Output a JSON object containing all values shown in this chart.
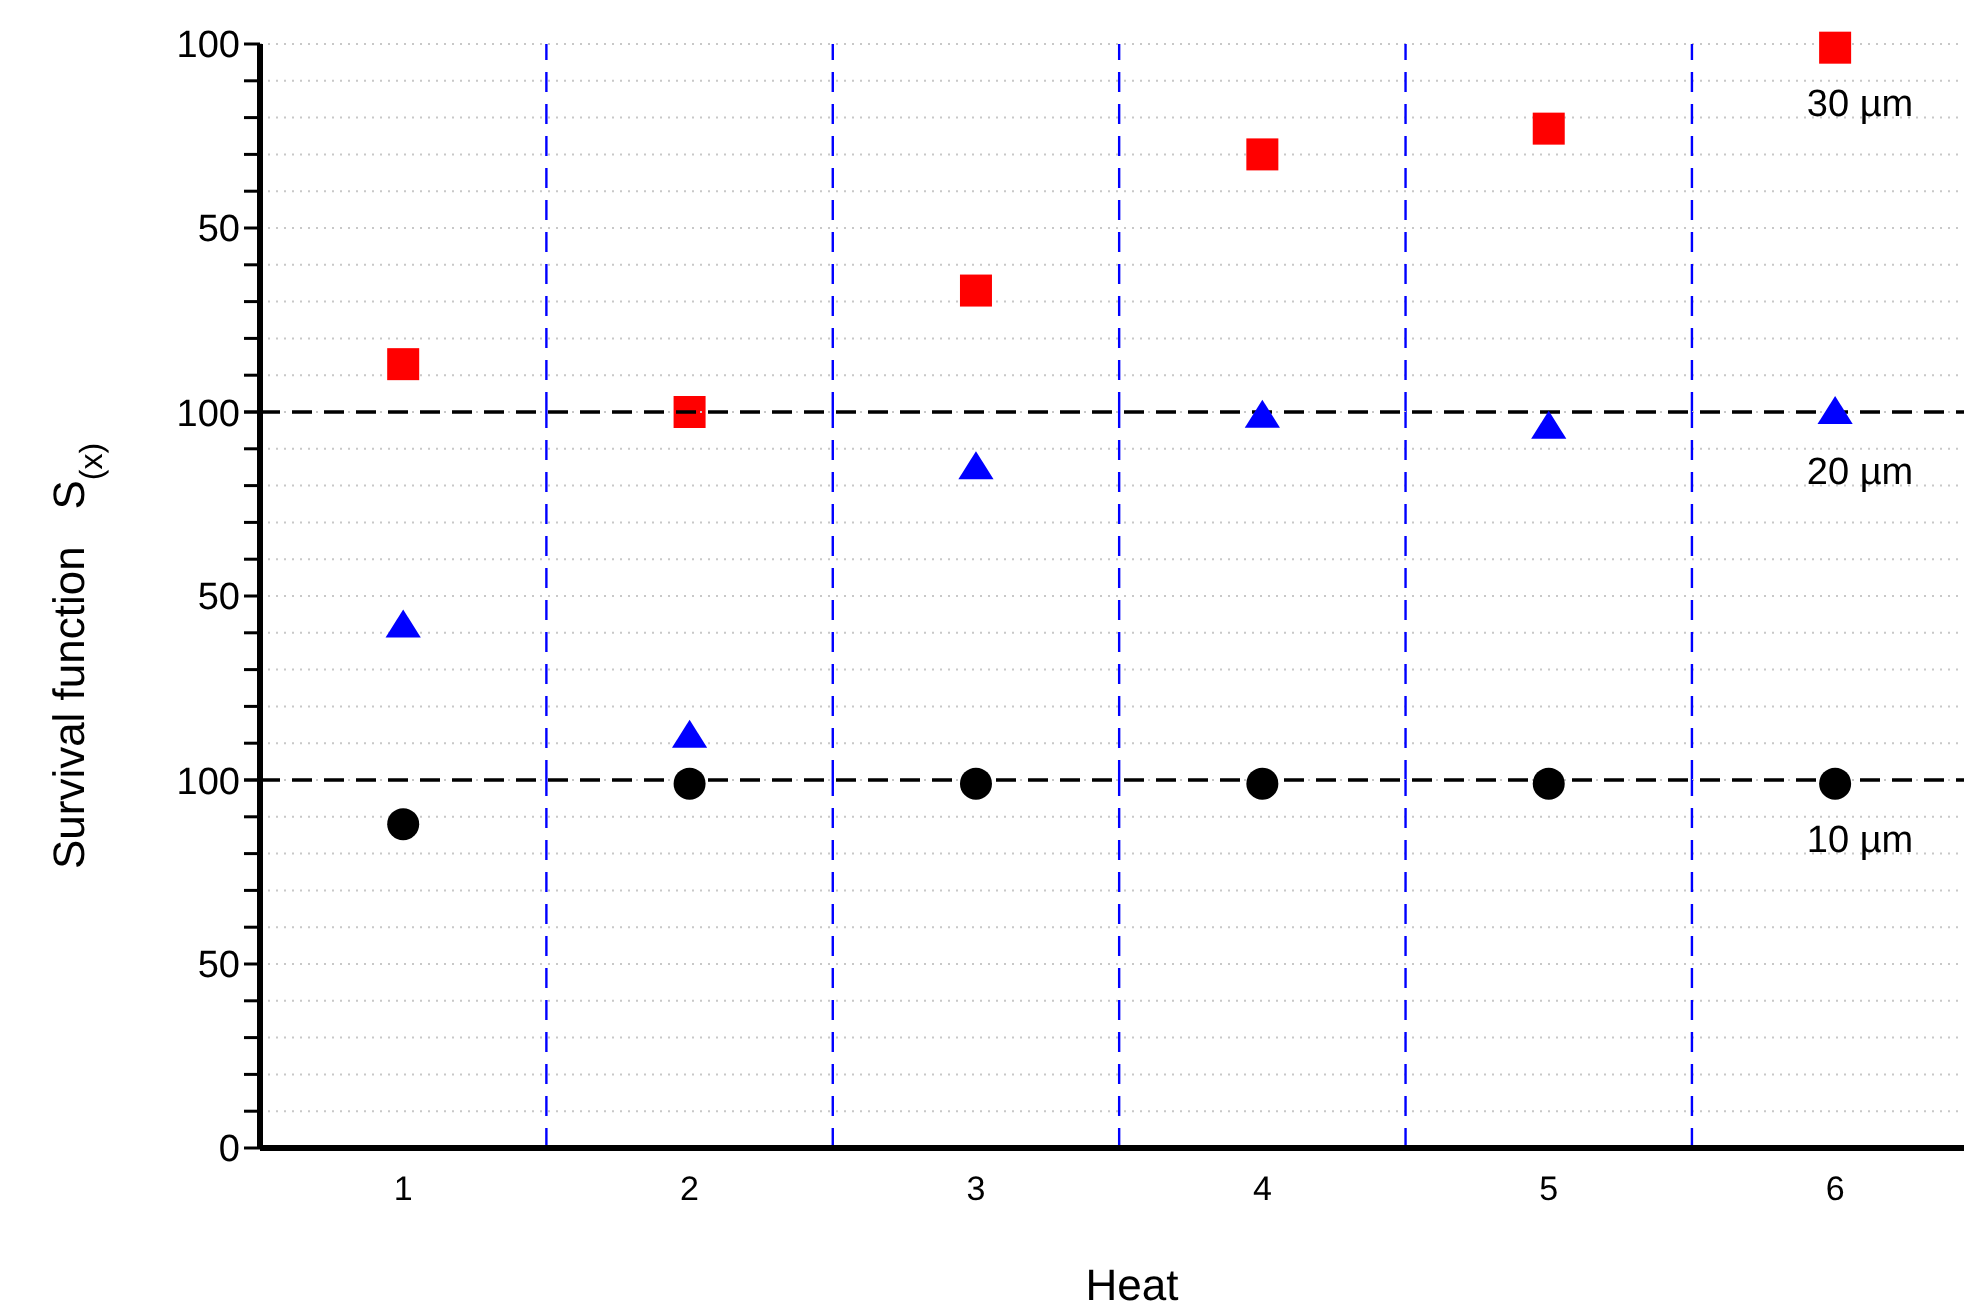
{
  "chart_data": [
    {
      "type": "scatter",
      "x": [
        1,
        2,
        3,
        4,
        5,
        6
      ],
      "xlim": [
        0.5,
        6.45
      ],
      "xticks": [
        1,
        2,
        3,
        4,
        5,
        6
      ],
      "ylim": [
        0,
        100
      ],
      "yticks": [
        {
          "value": 0,
          "label": null
        },
        {
          "value": 10,
          "label": null
        },
        {
          "value": 20,
          "label": null
        },
        {
          "value": 30,
          "label": null
        },
        {
          "value": 40,
          "label": null
        },
        50,
        {
          "value": 60,
          "label": null
        },
        {
          "value": 70,
          "label": null
        },
        {
          "value": 80,
          "label": null
        },
        {
          "value": 90,
          "label": null
        },
        100
      ],
      "tick_labels": "y",
      "grid": "y",
      "series": [
        {
          "name": "30 µm",
          "color": "#ff0000",
          "marker": "square",
          "values": [
            13,
            0,
            33,
            70,
            77,
            99
          ]
        }
      ],
      "ref_lines": [
        {
          "axis": "x",
          "value": 1.5,
          "color": "#0000ff",
          "line_style": "dashed"
        },
        {
          "axis": "x",
          "value": 2.5,
          "color": "#0000ff",
          "line_style": "dashed"
        },
        {
          "axis": "x",
          "value": 3.5,
          "color": "#0000ff",
          "line_style": "dashed"
        },
        {
          "axis": "x",
          "value": 4.5,
          "color": "#0000ff",
          "line_style": "dashed"
        },
        {
          "axis": "x",
          "value": 5.5,
          "color": "#0000ff",
          "line_style": "dashed"
        }
      ]
    },
    {
      "type": "scatter",
      "x": [
        1,
        2,
        3,
        4,
        5,
        6
      ],
      "xlim": [
        0.5,
        6.45
      ],
      "xticks": [
        1,
        2,
        3,
        4,
        5,
        6
      ],
      "ylim": [
        0,
        100
      ],
      "yticks": [
        {
          "value": 0,
          "label": null
        },
        {
          "value": 10,
          "label": null
        },
        {
          "value": 20,
          "label": null
        },
        {
          "value": 30,
          "label": null
        },
        {
          "value": 40,
          "label": null
        },
        50,
        {
          "value": 60,
          "label": null
        },
        {
          "value": 70,
          "label": null
        },
        {
          "value": 80,
          "label": null
        },
        {
          "value": 90,
          "label": null
        },
        100
      ],
      "tick_labels": "y",
      "grid": "y",
      "ylabel": "Survival function   S$_{(x)}$",
      "series": [
        {
          "name": "20 µm",
          "color": "#0000ff",
          "marker": "triangle",
          "values": [
            42,
            12,
            85,
            99,
            96,
            100
          ]
        }
      ],
      "ref_lines": [
        {
          "axis": "y",
          "value": 100,
          "color": "#000000",
          "line_style": "dashed"
        },
        {
          "axis": "x",
          "value": 1.5,
          "color": "#0000ff",
          "line_style": "dashed"
        },
        {
          "axis": "x",
          "value": 2.5,
          "color": "#0000ff",
          "line_style": "dashed"
        },
        {
          "axis": "x",
          "value": 3.5,
          "color": "#0000ff",
          "line_style": "dashed"
        },
        {
          "axis": "x",
          "value": 4.5,
          "color": "#0000ff",
          "line_style": "dashed"
        },
        {
          "axis": "x",
          "value": 5.5,
          "color": "#0000ff",
          "line_style": "dashed"
        }
      ]
    },
    {
      "type": "scatter",
      "x": [
        1,
        2,
        3,
        4,
        5,
        6
      ],
      "xlim": [
        0.5,
        6.45
      ],
      "xticks": [
        1,
        2,
        3,
        4,
        5,
        6
      ],
      "ylim": [
        0,
        100
      ],
      "yticks": [
        0,
        {
          "value": 10,
          "label": null
        },
        {
          "value": 20,
          "label": null
        },
        {
          "value": 30,
          "label": null
        },
        {
          "value": 40,
          "label": null
        },
        50,
        {
          "value": 60,
          "label": null
        },
        {
          "value": 70,
          "label": null
        },
        {
          "value": 80,
          "label": null
        },
        {
          "value": 90,
          "label": null
        },
        100
      ],
      "grid": "y",
      "xlabel": "Heat",
      "series": [
        {
          "name": "10 µm",
          "color": "#000000",
          "marker": "circle",
          "values": [
            88,
            99,
            99,
            99,
            99,
            99
          ]
        }
      ],
      "ref_lines": [
        {
          "axis": "y",
          "value": 100,
          "color": "#000000",
          "line_style": "dashed"
        },
        {
          "axis": "x",
          "value": 1.5,
          "color": "#0000ff",
          "line_style": "dashed"
        },
        {
          "axis": "x",
          "value": 2.5,
          "color": "#0000ff",
          "line_style": "dashed"
        },
        {
          "axis": "x",
          "value": 3.5,
          "color": "#0000ff",
          "line_style": "dashed"
        },
        {
          "axis": "x",
          "value": 4.5,
          "color": "#0000ff",
          "line_style": "dashed"
        },
        {
          "axis": "x",
          "value": 5.5,
          "color": "#0000ff",
          "line_style": "dashed"
        }
      ]
    }
  ]
}
